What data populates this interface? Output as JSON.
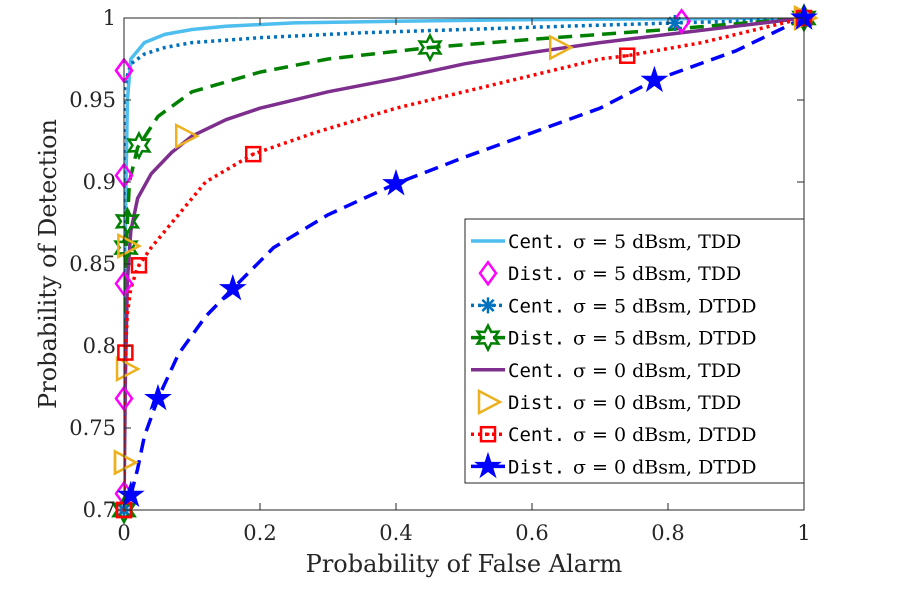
{
  "chart_data": {
    "type": "line",
    "title": "",
    "xlabel": "Probability of False Alarm",
    "ylabel": "Probability of Detection",
    "xlim": [
      0,
      1
    ],
    "ylim": [
      0.7,
      1
    ],
    "xticks": [
      0,
      0.2,
      0.4,
      0.6,
      0.8,
      1
    ],
    "xtick_labels": [
      "0",
      "0.2",
      "0.4",
      "0.6",
      "0.8",
      "1"
    ],
    "yticks": [
      0.7,
      0.75,
      0.8,
      0.85,
      0.9,
      0.95,
      1
    ],
    "ytick_labels": [
      "0.7",
      "0.75",
      "0.8",
      "0.85",
      "0.9",
      "0.95",
      "1"
    ],
    "grid": false,
    "legend_position": "bottom-right",
    "series": [
      {
        "name": "Cent. σ = 5 dBsm, TDD",
        "legend": {
          "scheme": "Cent.",
          "param": "σ = 5 dBsm, TDD"
        },
        "color": "#4DBEEE",
        "line_style": "solid",
        "marker": "none",
        "x": [
          0,
          0.001,
          0.005,
          0.01,
          0.03,
          0.06,
          0.1,
          0.15,
          0.25,
          0.4,
          0.6,
          0.8,
          1.0
        ],
        "y": [
          0.7,
          0.85,
          0.95,
          0.975,
          0.985,
          0.99,
          0.993,
          0.995,
          0.997,
          0.998,
          0.999,
          0.9995,
          1.0
        ],
        "marker_x": []
      },
      {
        "name": "Dist. σ = 5 dBsm, TDD",
        "legend": {
          "scheme": "Dist.",
          "param": "σ = 5 dBsm, TDD"
        },
        "color": "#FF00FF",
        "line_style": "none",
        "marker": "diamond",
        "x": [
          0.0,
          0.0,
          0.0,
          0.0,
          0.0,
          0.0,
          0.82,
          1.0
        ],
        "y": [
          0.71,
          0.768,
          0.838,
          0.904,
          0.968,
          0.968,
          0.998,
          1.0
        ],
        "marker_x": [
          0.0,
          0.0,
          0.0,
          0.0,
          0.002,
          0.82,
          1.0
        ]
      },
      {
        "name": "Cent. σ = 5 dBsm, DTDD",
        "legend": {
          "scheme": "Cent.",
          "param": "σ = 5 dBsm, DTDD"
        },
        "color": "#0072BD",
        "line_style": "dotted",
        "marker": "asterisk",
        "x": [
          0,
          0.0,
          0.0,
          0.0,
          0.0,
          0.005,
          0.01,
          0.03,
          0.06,
          0.1,
          0.2,
          0.35,
          0.5,
          0.65,
          0.81,
          0.9,
          1.0
        ],
        "y": [
          0.7,
          0.755,
          0.825,
          0.895,
          0.955,
          0.965,
          0.972,
          0.978,
          0.982,
          0.985,
          0.988,
          0.991,
          0.993,
          0.995,
          0.997,
          0.998,
          1.0
        ],
        "marker_x": [
          0.0,
          0.0,
          0.0,
          0.0,
          0.81,
          1.0
        ]
      },
      {
        "name": "Dist. σ = 5 dBsm, DTDD",
        "legend": {
          "scheme": "Dist.",
          "param": "σ = 5 dBsm, DTDD"
        },
        "color": "#008000",
        "line_style": "dashed",
        "marker": "hexagram",
        "x": [
          0.0,
          0.0,
          0.003,
          0.008,
          0.02,
          0.05,
          0.1,
          0.2,
          0.3,
          0.45,
          0.6,
          0.8,
          1.0
        ],
        "y": [
          0.7,
          0.79,
          0.86,
          0.9,
          0.921,
          0.94,
          0.955,
          0.967,
          0.975,
          0.982,
          0.987,
          0.993,
          1.0
        ],
        "marker_x": [
          0.0,
          0.0,
          0.003,
          0.005,
          0.022,
          0.45,
          1.0
        ]
      },
      {
        "name": "Cent. σ = 0 dBsm, TDD",
        "legend": {
          "scheme": "Cent.",
          "param": "σ = 0 dBsm, TDD"
        },
        "color": "#7E2F8E",
        "line_style": "solid",
        "marker": "none",
        "x": [
          0.0,
          0.002,
          0.005,
          0.01,
          0.02,
          0.04,
          0.07,
          0.1,
          0.15,
          0.2,
          0.3,
          0.4,
          0.5,
          0.6,
          0.7,
          0.8,
          0.9,
          1.0
        ],
        "y": [
          0.7,
          0.78,
          0.84,
          0.87,
          0.89,
          0.905,
          0.918,
          0.928,
          0.938,
          0.945,
          0.955,
          0.963,
          0.972,
          0.979,
          0.985,
          0.99,
          0.995,
          1.0
        ],
        "marker_x": []
      },
      {
        "name": "Dist. σ = 0 dBsm, TDD",
        "legend": {
          "scheme": "Dist.",
          "param": "σ = 0 dBsm, TDD"
        },
        "color": "#EDB120",
        "line_style": "none",
        "marker": "triangle-right",
        "x": [
          0.0,
          0.0,
          0.003,
          0.005,
          0.09,
          0.64,
          1.0
        ],
        "y": [
          0.729,
          0.729,
          0.786,
          0.861,
          0.928,
          0.982,
          1.0
        ],
        "marker_x": [
          0.003,
          0.005,
          0.003,
          0.005,
          0.09,
          0.64,
          1.0
        ]
      },
      {
        "name": "Cent. σ = 0 dBsm, DTDD",
        "legend": {
          "scheme": "Cent.",
          "param": "σ = 0 dBsm, DTDD"
        },
        "color": "#FF0000",
        "line_style": "dotted",
        "marker": "square",
        "x": [
          0.0,
          0.0,
          0.005,
          0.01,
          0.02,
          0.04,
          0.08,
          0.12,
          0.19,
          0.28,
          0.4,
          0.55,
          0.7,
          0.74,
          0.85,
          1.0
        ],
        "y": [
          0.7,
          0.78,
          0.82,
          0.835,
          0.848,
          0.86,
          0.88,
          0.9,
          0.917,
          0.93,
          0.945,
          0.96,
          0.975,
          0.977,
          0.985,
          1.0
        ],
        "marker_x": [
          0.0,
          0.0,
          0.002,
          0.022,
          0.19,
          0.74,
          1.0
        ]
      },
      {
        "name": "Dist. σ = 0 dBsm, DTDD",
        "legend": {
          "scheme": "Dist.",
          "param": "σ = 0 dBsm, DTDD"
        },
        "color": "#0000FF",
        "line_style": "dashed",
        "marker": "pentagram",
        "x": [
          0.01,
          0.02,
          0.03,
          0.05,
          0.08,
          0.12,
          0.16,
          0.22,
          0.3,
          0.4,
          0.5,
          0.6,
          0.7,
          0.78,
          0.9,
          1.0
        ],
        "y": [
          0.709,
          0.725,
          0.745,
          0.768,
          0.795,
          0.818,
          0.835,
          0.86,
          0.88,
          0.899,
          0.915,
          0.93,
          0.945,
          0.962,
          0.98,
          1.0
        ],
        "marker_x": [
          0.01,
          0.05,
          0.16,
          0.4,
          0.78,
          1.0
        ]
      }
    ]
  }
}
